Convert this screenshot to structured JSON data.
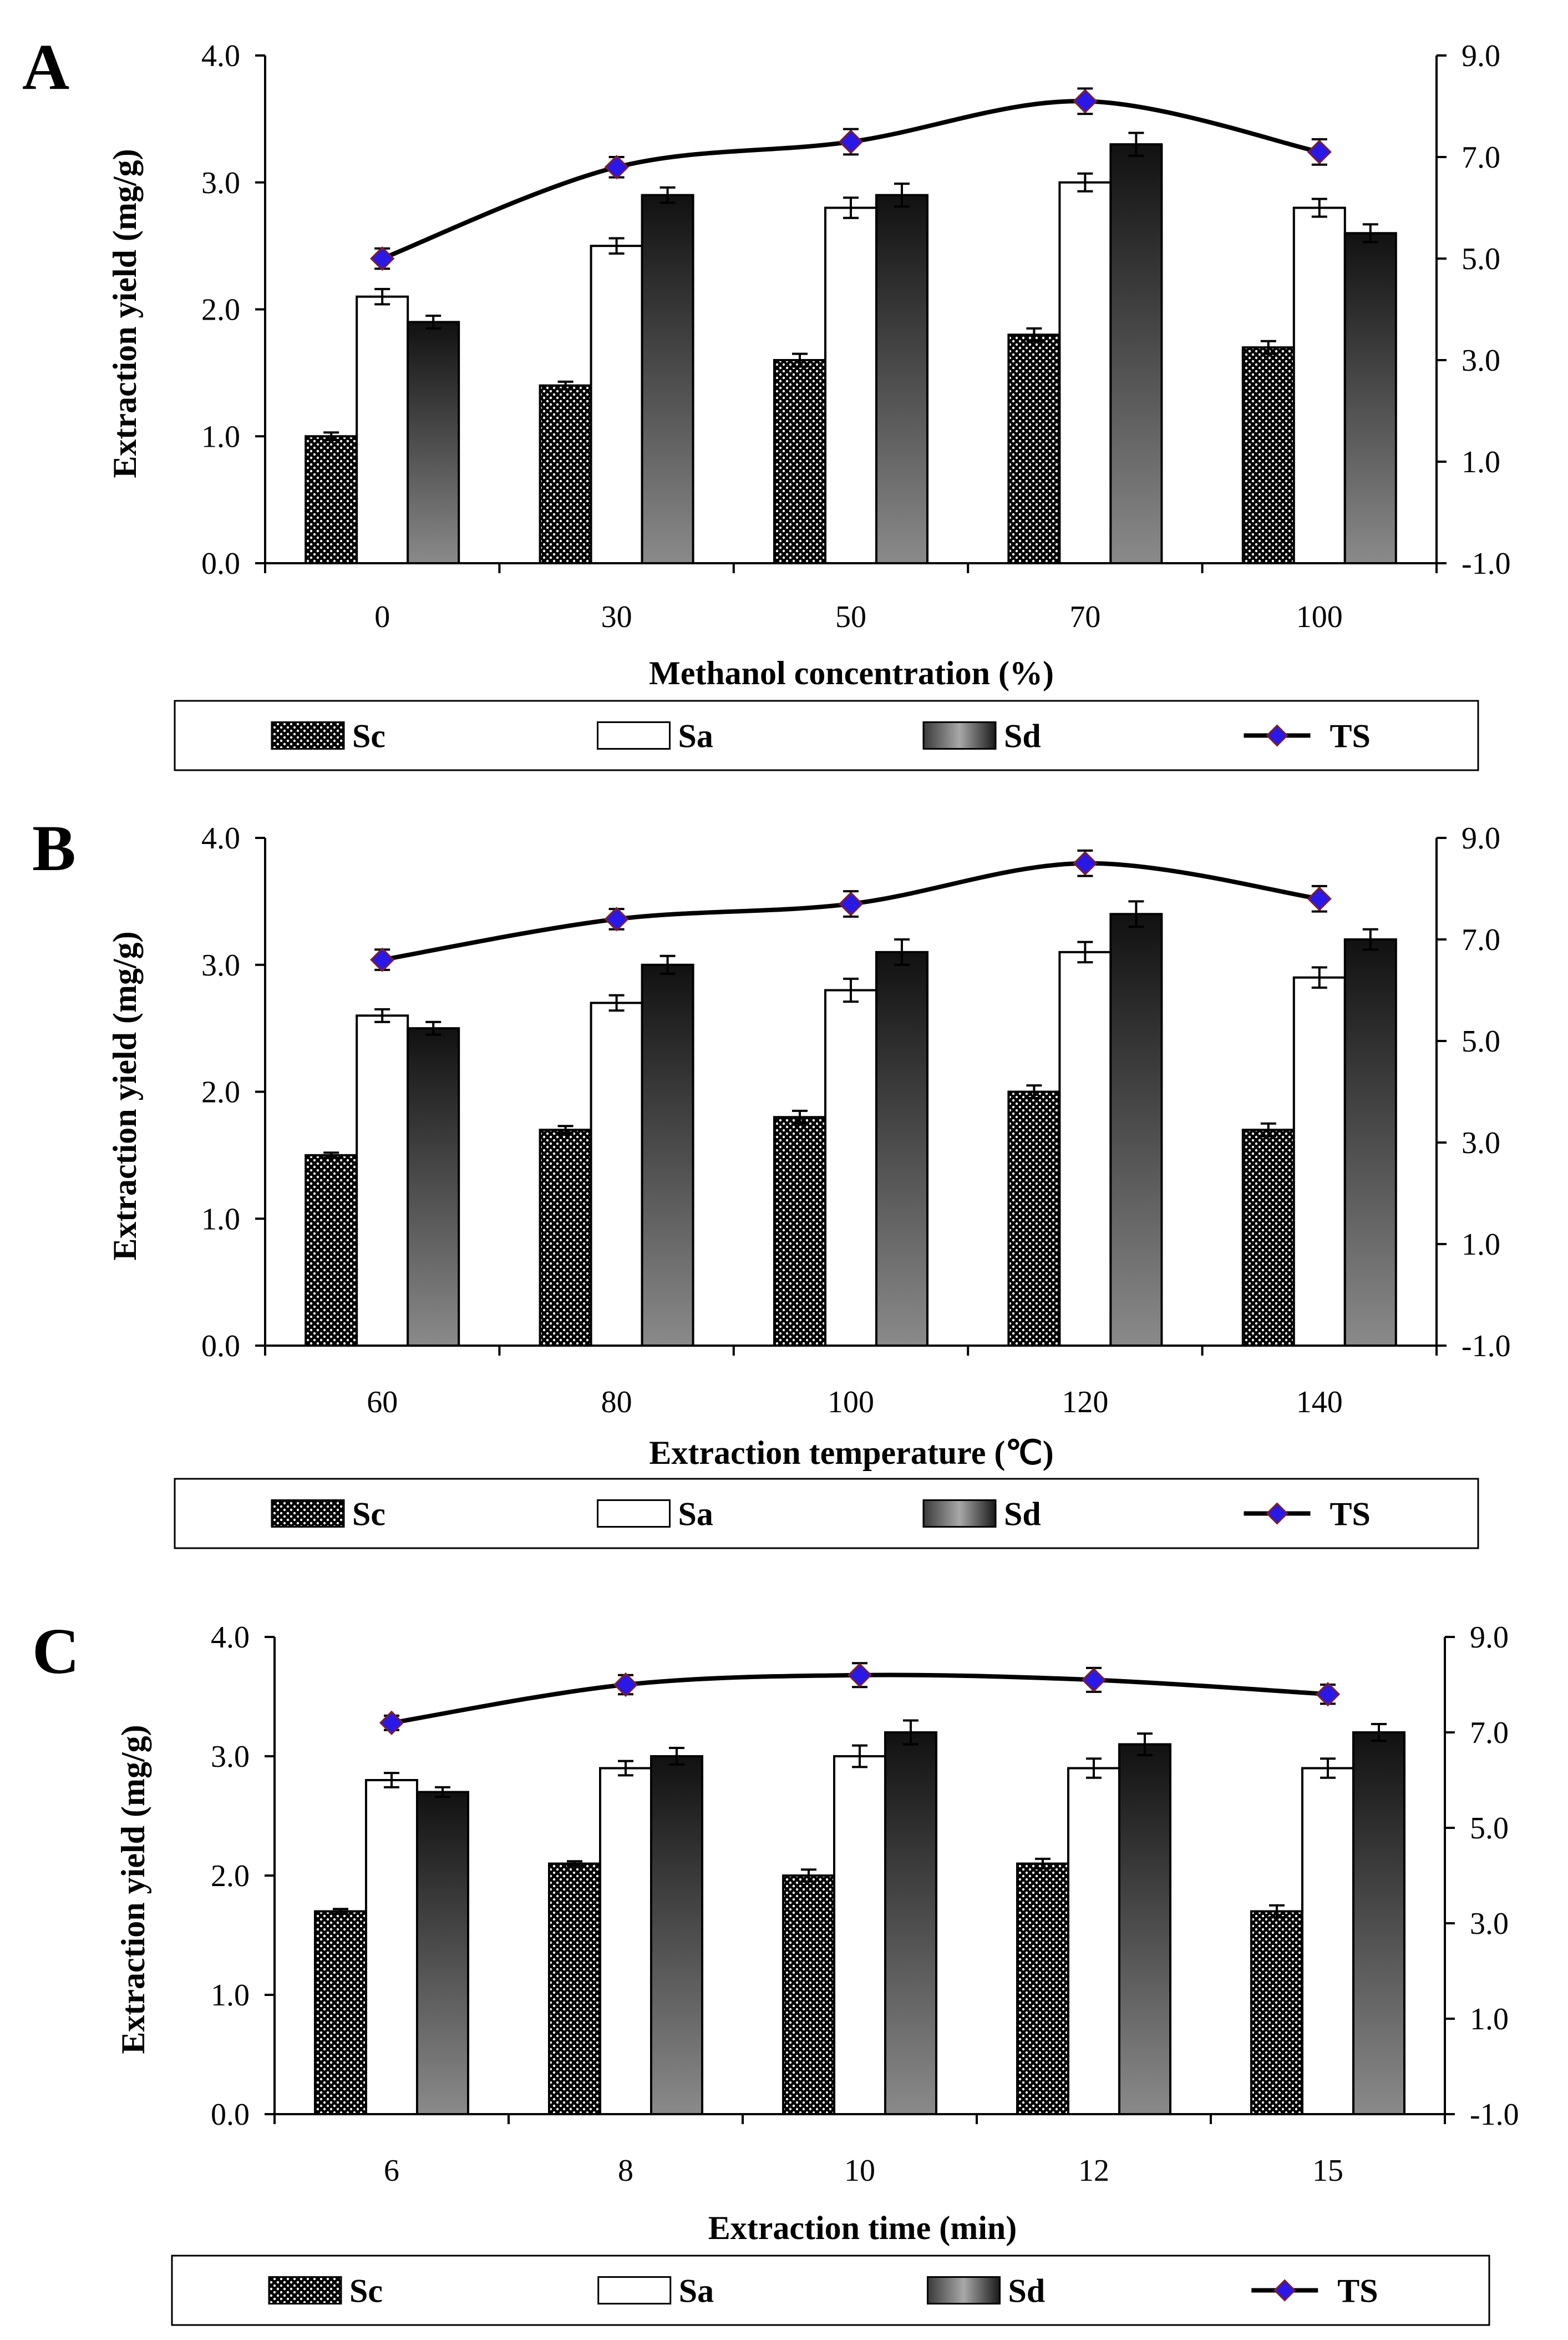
{
  "colors": {
    "Sc_dots": "#ffffff",
    "Sc_bg": "#000000",
    "Sa_fill": "#ffffff",
    "Sd_top": "#111111",
    "Sd_bottom": "#8a8a8a",
    "TS_line": "#000000",
    "TS_marker": "#2a18e6"
  },
  "legend": {
    "sc": "Sc",
    "sa": "Sa",
    "sd": "Sd",
    "ts": "TS"
  },
  "chart_data": [
    {
      "panel": "A",
      "type": "bar",
      "xlabel": "Methanol concentration (%)",
      "ylabel": "Extraction yield (mg/g)",
      "y_ticks": [
        "0.0",
        "1.0",
        "2.0",
        "3.0",
        "4.0"
      ],
      "y2_ticks": [
        "-1.0",
        "1.0",
        "3.0",
        "5.0",
        "7.0",
        "9.0"
      ],
      "ylim": [
        0,
        4
      ],
      "y2lim": [
        -1,
        9
      ],
      "categories": [
        "0",
        "30",
        "50",
        "70",
        "100"
      ],
      "series": [
        {
          "name": "Sc",
          "values": [
            1.0,
            1.4,
            1.6,
            1.8,
            1.7
          ],
          "err": [
            0.03,
            0.03,
            0.05,
            0.05,
            0.05
          ]
        },
        {
          "name": "Sa",
          "values": [
            2.1,
            2.5,
            2.8,
            3.0,
            2.8
          ],
          "err": [
            0.06,
            0.06,
            0.08,
            0.07,
            0.07
          ]
        },
        {
          "name": "Sd",
          "values": [
            1.9,
            2.9,
            2.9,
            3.3,
            2.6
          ],
          "err": [
            0.05,
            0.06,
            0.09,
            0.09,
            0.07
          ]
        },
        {
          "name": "TS",
          "axis": "right",
          "values": [
            5.0,
            6.8,
            7.3,
            8.1,
            7.1
          ],
          "err": [
            0.2,
            0.2,
            0.25,
            0.25,
            0.25
          ]
        }
      ]
    },
    {
      "panel": "B",
      "type": "bar",
      "xlabel": "Extraction temperature (℃)",
      "ylabel": "Extraction yield (mg/g)",
      "y_ticks": [
        "0.0",
        "1.0",
        "2.0",
        "3.0",
        "4.0"
      ],
      "y2_ticks": [
        "-1.0",
        "1.0",
        "3.0",
        "5.0",
        "7.0",
        "9.0"
      ],
      "ylim": [
        0,
        4
      ],
      "y2lim": [
        -1,
        9
      ],
      "categories": [
        "60",
        "80",
        "100",
        "120",
        "140"
      ],
      "series": [
        {
          "name": "Sc",
          "values": [
            1.5,
            1.7,
            1.8,
            2.0,
            1.7
          ],
          "err": [
            0.02,
            0.03,
            0.05,
            0.05,
            0.05
          ]
        },
        {
          "name": "Sa",
          "values": [
            2.6,
            2.7,
            2.8,
            3.1,
            2.9
          ],
          "err": [
            0.05,
            0.06,
            0.09,
            0.08,
            0.08
          ]
        },
        {
          "name": "Sd",
          "values": [
            2.5,
            3.0,
            3.1,
            3.4,
            3.2
          ],
          "err": [
            0.05,
            0.07,
            0.1,
            0.1,
            0.08
          ]
        },
        {
          "name": "TS",
          "axis": "right",
          "values": [
            6.6,
            7.4,
            7.7,
            8.5,
            7.8
          ],
          "err": [
            0.2,
            0.2,
            0.25,
            0.25,
            0.25
          ]
        }
      ]
    },
    {
      "panel": "C",
      "type": "bar",
      "xlabel": "Extraction time (min)",
      "ylabel": "Extraction yield (mg/g)",
      "y_ticks": [
        "0.0",
        "1.0",
        "2.0",
        "3.0",
        "4.0"
      ],
      "y2_ticks": [
        "-1.0",
        "1.0",
        "3.0",
        "5.0",
        "7.0",
        "9.0"
      ],
      "ylim": [
        0,
        4
      ],
      "y2lim": [
        -1,
        9
      ],
      "categories": [
        "6",
        "8",
        "10",
        "12",
        "15"
      ],
      "series": [
        {
          "name": "Sc",
          "values": [
            1.7,
            2.1,
            2.0,
            2.1,
            1.7
          ],
          "err": [
            0.02,
            0.02,
            0.05,
            0.04,
            0.05
          ]
        },
        {
          "name": "Sa",
          "values": [
            2.8,
            2.9,
            3.0,
            2.9,
            2.9
          ],
          "err": [
            0.06,
            0.06,
            0.09,
            0.08,
            0.08
          ]
        },
        {
          "name": "Sd",
          "values": [
            2.7,
            3.0,
            3.2,
            3.1,
            3.2
          ],
          "err": [
            0.04,
            0.07,
            0.1,
            0.09,
            0.07
          ]
        },
        {
          "name": "TS",
          "axis": "right",
          "values": [
            7.2,
            8.0,
            8.2,
            8.1,
            7.8
          ],
          "err": [
            0.15,
            0.2,
            0.25,
            0.25,
            0.2
          ]
        }
      ]
    }
  ]
}
